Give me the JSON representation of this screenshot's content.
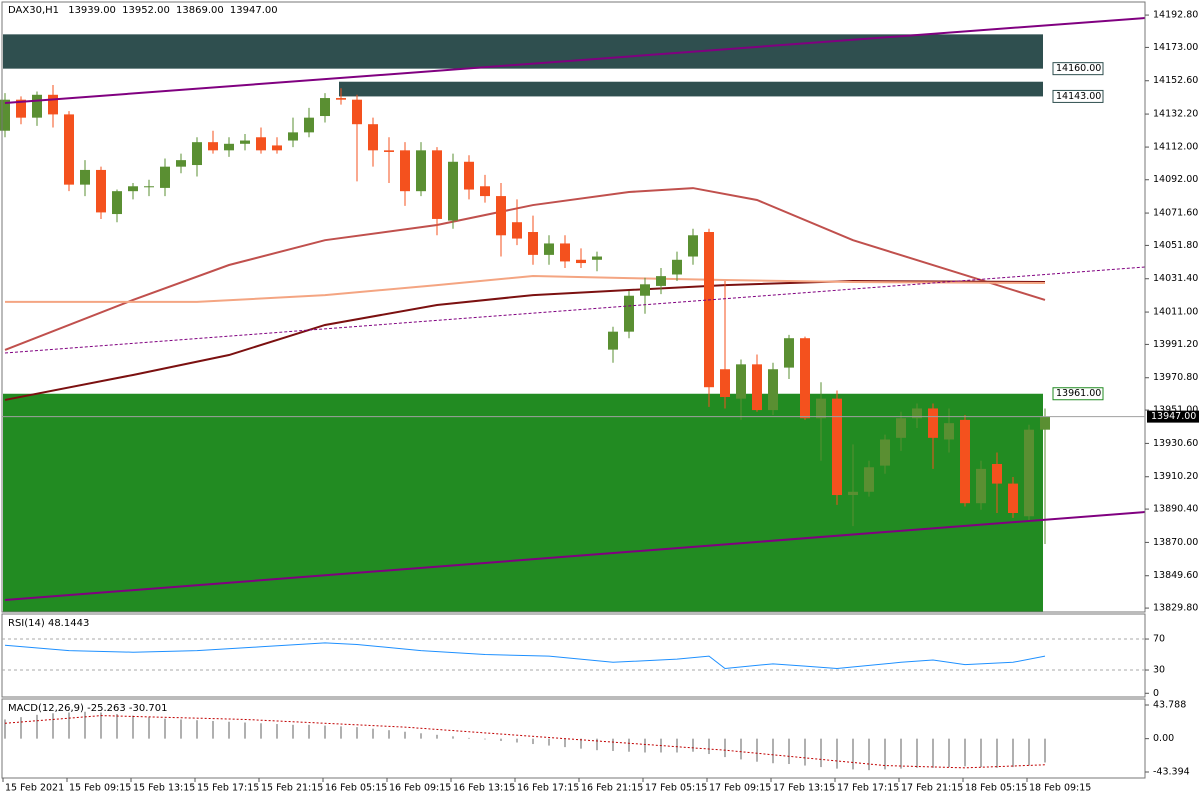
{
  "chart_data": [
    {
      "type": "candlestick",
      "symbol": "DAX30,H1",
      "header": [
        "13939.00",
        "13952.00",
        "13869.00",
        "13947.00"
      ],
      "up_color": "#5a8f32",
      "down_color": "#f4511e",
      "ylim": [
        13827.4,
        14200.8
      ],
      "yticks": [
        {
          "value": 14192.8,
          "label": "14192.80"
        },
        {
          "value": 14173,
          "label": "14173.00"
        },
        {
          "value": 14152.6,
          "label": "14152.60"
        },
        {
          "value": 14132.2,
          "label": "14132.20"
        },
        {
          "value": 14112,
          "label": "14112.00"
        },
        {
          "value": 14092,
          "label": "14092.00"
        },
        {
          "value": 14071.6,
          "label": "14071.60"
        },
        {
          "value": 14051.8,
          "label": "14051.80"
        },
        {
          "value": 14031.4,
          "label": "14031.40"
        },
        {
          "value": 14011,
          "label": "14011.00"
        },
        {
          "value": 13991.2,
          "label": "13991.20"
        },
        {
          "value": 13970.8,
          "label": "13970.80"
        },
        {
          "value": 13951,
          "label": "13951.00"
        },
        {
          "value": 13930.6,
          "label": "13930.60"
        },
        {
          "value": 13910.2,
          "label": "13910.20"
        },
        {
          "value": 13890.4,
          "label": "13890.40"
        },
        {
          "value": 13870,
          "label": "13870.00"
        },
        {
          "value": 13849.6,
          "label": "13849.60"
        },
        {
          "value": 13829.8,
          "label": "13829.80"
        }
      ],
      "x_labels": [
        "15 Feb 2021",
        "15 Feb 09:15",
        "15 Feb 13:15",
        "15 Feb 17:15",
        "15 Feb 21:15",
        "16 Feb 05:15",
        "16 Feb 09:15",
        "16 Feb 13:15",
        "16 Feb 17:15",
        "16 Feb 21:15",
        "17 Feb 05:15",
        "17 Feb 09:15",
        "17 Feb 13:15",
        "17 Feb 17:15",
        "17 Feb 21:15",
        "18 Feb 05:15",
        "18 Feb 09:15"
      ],
      "open": [
        14122,
        14141,
        14130,
        14144,
        14132,
        14089,
        14098,
        14071,
        14085,
        14088,
        14087,
        14100,
        14101,
        14115,
        14110,
        14114,
        14118,
        14113,
        14116,
        14121,
        14131,
        14142,
        14141,
        14126,
        14110,
        14110,
        14085,
        14110,
        14067,
        14103,
        14088,
        14082,
        14066,
        14060,
        14046,
        14053,
        14043,
        14043,
        13988,
        13999,
        14021,
        14027,
        14034,
        14045,
        14060,
        13976,
        13958,
        13979,
        13951,
        13977,
        13995,
        13946,
        13958,
        13899,
        13901,
        13917,
        13934,
        13946,
        13952,
        13933,
        13945,
        13894,
        13918,
        13906,
        13886,
        13939
      ],
      "high": [
        14145,
        14143,
        14146,
        14150,
        14134,
        14104,
        14100,
        14086,
        14090,
        14092,
        14105,
        14108,
        14118,
        14122,
        14118,
        14120,
        14124,
        14118,
        14130,
        14136,
        14145,
        14148,
        14144,
        14130,
        14118,
        14115,
        14115,
        14112,
        14108,
        14107,
        14095,
        14090,
        14080,
        14070,
        14058,
        14058,
        14050,
        14048,
        14002,
        14024,
        14032,
        14038,
        14048,
        14062,
        14062,
        14030,
        13982,
        13985,
        13980,
        13997,
        13996,
        13968,
        13963,
        13930,
        13920,
        13936,
        13950,
        13955,
        13955,
        13952,
        13948,
        13920,
        13925,
        13910,
        13942,
        13952
      ],
      "low": [
        14118,
        14126,
        14125,
        14124,
        14085,
        14082,
        14068,
        14066,
        14080,
        14082,
        14082,
        14096,
        14094,
        14108,
        14106,
        14110,
        14108,
        14108,
        14112,
        14118,
        14127,
        14138,
        14091,
        14100,
        14090,
        14076,
        14082,
        14058,
        14062,
        14080,
        14078,
        14045,
        14052,
        14040,
        14040,
        14038,
        14038,
        14036,
        13980,
        13995,
        14010,
        14022,
        14030,
        14040,
        13953,
        13952,
        13945,
        13950,
        13948,
        13970,
        13945,
        13920,
        13893,
        13880,
        13898,
        13912,
        13926,
        13940,
        13915,
        13925,
        13892,
        13890,
        13888,
        13885,
        13883,
        13869
      ],
      "close": [
        14141,
        14130,
        14144,
        14132,
        14089,
        14098,
        14072,
        14085,
        14088,
        14088,
        14100,
        14104,
        14115,
        14110,
        14114,
        14116,
        14110,
        14110,
        14121,
        14130,
        14142,
        14141,
        14126,
        14110,
        14109,
        14085,
        14110,
        14068,
        14103,
        14086,
        14082,
        14058,
        14056,
        14046,
        14053,
        14042,
        14041,
        14045,
        13999,
        14021,
        14028,
        14033,
        14043,
        14058,
        13965,
        13959,
        13979,
        13951,
        13976,
        13995,
        13946,
        13958,
        13899,
        13901,
        13916,
        13933,
        13946,
        13952,
        13934,
        13943,
        13894,
        13915,
        13906,
        13888,
        13939,
        13947
      ],
      "lines": [
        {
          "color": "#c0504d",
          "x": [
            0,
            8,
            14,
            20,
            27,
            33,
            39,
            43,
            47,
            53,
            59,
            65
          ],
          "values": [
            13987.8,
            14018.4,
            14039.8,
            14055,
            14064.3,
            14076.5,
            14084.5,
            14086.9,
            14079.6,
            14055,
            14036.7,
            14018.4
          ]
        },
        {
          "color": "#7b1010",
          "x": [
            0,
            8,
            14,
            20,
            27,
            33,
            39,
            45,
            53,
            65
          ],
          "values": [
            13957.2,
            13972.5,
            13984.7,
            14003.1,
            14015.3,
            14021.4,
            14024.5,
            14027.5,
            14030,
            14029.4
          ]
        },
        {
          "color": "#f4a582",
          "x": [
            0,
            12,
            20,
            27,
            33,
            39,
            45,
            53,
            65
          ],
          "values": [
            14017.2,
            14017.2,
            14021.4,
            14027.5,
            14033.1,
            14031.8,
            14030.6,
            14029.4,
            14028.8
          ]
        }
      ],
      "zones": [
        {
          "top": 14181,
          "bottom": 14160,
          "x_start": 0,
          "color": "#2f4f4f"
        },
        {
          "top": 14152,
          "bottom": 14143,
          "x_start": 21,
          "color": "#2f4f4f"
        },
        {
          "top": 13961,
          "bottom": 13827.4,
          "x_start": 0,
          "color": "#228b22"
        }
      ],
      "price_labels": [
        {
          "value": 14160,
          "label": "14160.00",
          "color": "#2f4f4f"
        },
        {
          "value": 14143,
          "label": "14143.00",
          "color": "#2f4f4f"
        },
        {
          "value": 13961,
          "label": "13961.00",
          "color": "#228b22"
        }
      ],
      "current_price": {
        "value": 13947,
        "label": "13947.00"
      }
    },
    {
      "type": "line",
      "title": "RSI(14) 48.1443",
      "color": "#1e90ff",
      "ylim": [
        -4.8,
        102.3
      ],
      "yticks": [
        70,
        30,
        0
      ],
      "levels": [
        70,
        30
      ],
      "x": [
        0,
        4,
        8,
        12,
        16,
        20,
        22,
        26,
        30,
        34,
        38,
        42,
        44,
        45,
        48,
        50,
        52,
        56,
        58,
        60,
        63,
        65
      ],
      "values": [
        62,
        55,
        53,
        55,
        60,
        65,
        63,
        55,
        50,
        48,
        40,
        44,
        48,
        32,
        38,
        35,
        32,
        40,
        43,
        37,
        40,
        48
      ]
    },
    {
      "type": "bar",
      "title": "MACD(12,26,9) -25.263 -30.701",
      "color": "#b0b0b0",
      "signal_color": "#c00000",
      "ylim": [
        -51.2,
        51.6
      ],
      "yticks": [
        43.788,
        {
          "value": 0,
          "label": "0.00"
        },
        -43.394
      ],
      "values": [
        25,
        28,
        31,
        33,
        34,
        35,
        34,
        32,
        30,
        28,
        26,
        25,
        24,
        23,
        22,
        21,
        20,
        19,
        18,
        18,
        17,
        16,
        15,
        13,
        11,
        9,
        7,
        5,
        3,
        1,
        -1,
        -3,
        -5,
        -7,
        -9,
        -11,
        -13,
        -15,
        -16,
        -17,
        -18,
        -18,
        -18,
        -17,
        -20,
        -24,
        -27,
        -30,
        -32,
        -33,
        -35,
        -37,
        -39,
        -40,
        -41,
        -40,
        -39,
        -38,
        -38,
        -37,
        -36,
        -37,
        -38,
        -37,
        -35,
        -31
      ],
      "signal_x": [
        0,
        6,
        15,
        25,
        35,
        45,
        55,
        60,
        65
      ],
      "signal": [
        20,
        30,
        25,
        15,
        0,
        -15,
        -35,
        -38,
        -34
      ]
    }
  ]
}
